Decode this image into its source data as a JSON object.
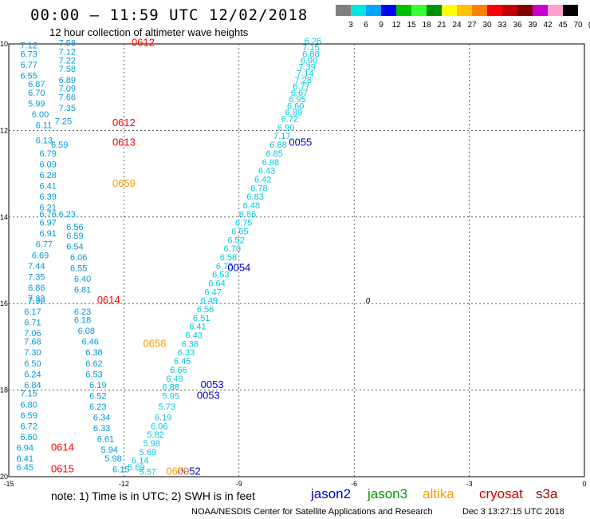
{
  "title": "00:00 – 11:59 UTC 12/02/2018",
  "subtitle": "12 hour collection of altimeter wave heights",
  "legend": {
    "colors": [
      "#808080",
      "#00e5e5",
      "#00a5ff",
      "#0000ff",
      "#00c000",
      "#33ff33",
      "#009000",
      "#ffff00",
      "#ffc000",
      "#ff8000",
      "#ff0000",
      "#c00000",
      "#800000",
      "#cc00cc",
      "#ffa0d0",
      "#000000"
    ],
    "labels": [
      "3",
      "6",
      "9",
      "12",
      "15",
      "18",
      "21",
      "24",
      "27",
      "30",
      "33",
      "36",
      "39",
      "42",
      "45",
      "70",
      "(ft)"
    ]
  },
  "axes": {
    "x_ticks": [
      "-15",
      "-12",
      "-9",
      "-6",
      "-3",
      "0"
    ],
    "y_ticks": [
      "-10",
      "-12",
      "-14",
      "-16",
      "-18",
      "-20"
    ]
  },
  "footer": {
    "note": "note: 1) Time is in UTC; 2) SWH is in feet",
    "credit": "NOAA/NESDIS Center for Satellite Applications and Research",
    "timestamp": "Dec 3 13:27:15 UTC 2018"
  },
  "satellites": [
    {
      "name": "jason2",
      "color": "#0000cc"
    },
    {
      "name": "jason3",
      "color": "#009900"
    },
    {
      "name": "altika",
      "color": "#ff9900"
    },
    {
      "name": "cryosat",
      "color": "#cc0000"
    },
    {
      "name": "s3a",
      "color": "#990000"
    }
  ],
  "map_data": {
    "lon_range": [
      -15,
      0
    ],
    "lat_range": [
      -20,
      -10
    ],
    "time_labels": [
      {
        "text": "0612",
        "color": "#ff0000",
        "lon": -11.8,
        "lat": -10.05
      },
      {
        "text": "0612",
        "color": "#ff0000",
        "lon": -12.3,
        "lat": -11.9
      },
      {
        "text": "0613",
        "color": "#ff0000",
        "lon": -12.3,
        "lat": -12.35
      },
      {
        "text": "0659",
        "color": "#ff9900",
        "lon": -12.3,
        "lat": -13.3
      },
      {
        "text": "0614",
        "color": "#ff0000",
        "lon": -12.7,
        "lat": -16.0
      },
      {
        "text": "0658",
        "color": "#ff9900",
        "lon": -11.5,
        "lat": -17.0
      },
      {
        "text": "0614",
        "color": "#ff0000",
        "lon": -13.9,
        "lat": -19.4
      },
      {
        "text": "0615",
        "color": "#ff0000",
        "lon": -13.9,
        "lat": -19.9
      },
      {
        "text": "0055",
        "color": "#0000cc",
        "lon": -7.7,
        "lat": -12.35
      },
      {
        "text": "0054",
        "color": "#0000cc",
        "lon": -9.3,
        "lat": -15.25
      },
      {
        "text": "0053",
        "color": "#0000cc",
        "lon": -10.0,
        "lat": -17.95
      },
      {
        "text": "0053",
        "color": "#0000cc",
        "lon": -10.1,
        "lat": -18.2
      },
      {
        "text": "0052",
        "color": "#0000cc",
        "lon": -10.6,
        "lat": -19.95
      },
      {
        "text": "0659",
        "color": "#ff9900",
        "lon": -10.9,
        "lat": -19.95
      }
    ],
    "tracks": [
      {
        "color": "#009ad6",
        "values": [
          {
            "lon": -14.7,
            "lat": -10.1,
            "v": "7.12"
          },
          {
            "lon": -13.7,
            "lat": -10.05,
            "v": "7.58"
          },
          {
            "lon": -13.7,
            "lat": -10.25,
            "v": "7.12"
          },
          {
            "lon": -14.7,
            "lat": -10.3,
            "v": "6.73"
          },
          {
            "lon": -13.7,
            "lat": -10.45,
            "v": "7.22"
          },
          {
            "lon": -14.7,
            "lat": -10.55,
            "v": "6.77"
          },
          {
            "lon": -13.7,
            "lat": -10.65,
            "v": "7.58"
          },
          {
            "lon": -14.7,
            "lat": -10.8,
            "v": "6.55"
          },
          {
            "lon": -13.7,
            "lat": -10.9,
            "v": "6.89"
          },
          {
            "lon": -14.5,
            "lat": -11.0,
            "v": "6.87"
          },
          {
            "lon": -13.7,
            "lat": -11.1,
            "v": "7.09"
          },
          {
            "lon": -14.5,
            "lat": -11.2,
            "v": "6.70"
          },
          {
            "lon": -13.7,
            "lat": -11.3,
            "v": "7.66"
          },
          {
            "lon": -14.5,
            "lat": -11.45,
            "v": "5.99"
          },
          {
            "lon": -13.7,
            "lat": -11.55,
            "v": "7.35"
          },
          {
            "lon": -14.4,
            "lat": -11.7,
            "v": "6.00"
          },
          {
            "lon": -13.8,
            "lat": -11.85,
            "v": "7.25"
          },
          {
            "lon": -14.3,
            "lat": -11.95,
            "v": "6.11"
          },
          {
            "lon": -14.3,
            "lat": -12.3,
            "v": "6.13"
          },
          {
            "lon": -13.9,
            "lat": -12.4,
            "v": "6.59"
          },
          {
            "lon": -14.2,
            "lat": -12.6,
            "v": "6.79"
          },
          {
            "lon": -14.2,
            "lat": -12.85,
            "v": "6.09"
          },
          {
            "lon": -14.2,
            "lat": -13.1,
            "v": "6.28"
          },
          {
            "lon": -14.2,
            "lat": -13.35,
            "v": "6.41"
          },
          {
            "lon": -14.2,
            "lat": -13.6,
            "v": "6.39"
          },
          {
            "lon": -14.2,
            "lat": -13.85,
            "v": "6.21"
          },
          {
            "lon": -14.2,
            "lat": -14.0,
            "v": "6.76"
          },
          {
            "lon": -13.7,
            "lat": -14.0,
            "v": "6.23"
          },
          {
            "lon": -14.2,
            "lat": -14.2,
            "v": "6.97"
          },
          {
            "lon": -13.5,
            "lat": -14.3,
            "v": "6.56"
          },
          {
            "lon": -14.2,
            "lat": -14.45,
            "v": "6.91"
          },
          {
            "lon": -13.5,
            "lat": -14.5,
            "v": "6.59"
          },
          {
            "lon": -14.3,
            "lat": -14.7,
            "v": "6.77"
          },
          {
            "lon": -13.5,
            "lat": -14.75,
            "v": "6.54"
          },
          {
            "lon": -14.4,
            "lat": -14.95,
            "v": "6.69"
          },
          {
            "lon": -13.4,
            "lat": -15.0,
            "v": "6.06"
          },
          {
            "lon": -14.5,
            "lat": -15.2,
            "v": "7.44"
          },
          {
            "lon": -13.4,
            "lat": -15.25,
            "v": "6.55"
          },
          {
            "lon": -14.5,
            "lat": -15.45,
            "v": "7.35"
          },
          {
            "lon": -13.3,
            "lat": -15.5,
            "v": "6.40"
          },
          {
            "lon": -14.5,
            "lat": -15.7,
            "v": "6.86"
          },
          {
            "lon": -13.3,
            "lat": -15.75,
            "v": "6.81"
          },
          {
            "lon": -14.5,
            "lat": -15.95,
            "v": "7.33"
          },
          {
            "lon": -14.5,
            "lat": -16.0,
            "v": "7.30"
          },
          {
            "lon": -14.6,
            "lat": -16.25,
            "v": "6.17"
          },
          {
            "lon": -13.3,
            "lat": -16.25,
            "v": "6.23"
          },
          {
            "lon": -14.6,
            "lat": -16.5,
            "v": "6.71"
          },
          {
            "lon": -13.3,
            "lat": -16.45,
            "v": "6.18"
          },
          {
            "lon": -14.6,
            "lat": -16.75,
            "v": "7.06"
          },
          {
            "lon": -13.2,
            "lat": -16.7,
            "v": "6.08"
          },
          {
            "lon": -14.6,
            "lat": -16.95,
            "v": "7.68"
          },
          {
            "lon": -13.1,
            "lat": -16.95,
            "v": "6.46"
          },
          {
            "lon": -14.6,
            "lat": -17.2,
            "v": "7.30"
          },
          {
            "lon": -13.0,
            "lat": -17.2,
            "v": "6.38"
          },
          {
            "lon": -14.6,
            "lat": -17.45,
            "v": "6.50"
          },
          {
            "lon": -13.0,
            "lat": -17.45,
            "v": "6.62"
          },
          {
            "lon": -14.6,
            "lat": -17.7,
            "v": "6.24"
          },
          {
            "lon": -13.0,
            "lat": -17.7,
            "v": "6.53"
          },
          {
            "lon": -14.6,
            "lat": -17.95,
            "v": "6.84"
          },
          {
            "lon": -12.9,
            "lat": -17.95,
            "v": "6.19"
          },
          {
            "lon": -14.7,
            "lat": -18.15,
            "v": "7.15"
          },
          {
            "lon": -12.9,
            "lat": -18.2,
            "v": "6.52"
          },
          {
            "lon": -14.7,
            "lat": -18.4,
            "v": "6.80"
          },
          {
            "lon": -12.9,
            "lat": -18.45,
            "v": "6.23"
          },
          {
            "lon": -14.7,
            "lat": -18.65,
            "v": "6.59"
          },
          {
            "lon": -12.8,
            "lat": -18.7,
            "v": "6.34"
          },
          {
            "lon": -14.7,
            "lat": -18.9,
            "v": "6.72"
          },
          {
            "lon": -12.8,
            "lat": -18.95,
            "v": "6.33"
          },
          {
            "lon": -14.7,
            "lat": -19.15,
            "v": "6.60"
          },
          {
            "lon": -12.7,
            "lat": -19.2,
            "v": "6.61"
          },
          {
            "lon": -14.8,
            "lat": -19.4,
            "v": "6.94"
          },
          {
            "lon": -12.6,
            "lat": -19.45,
            "v": "5.94"
          },
          {
            "lon": -14.8,
            "lat": -19.65,
            "v": "6.41"
          },
          {
            "lon": -12.5,
            "lat": -19.65,
            "v": "5.98"
          },
          {
            "lon": -14.8,
            "lat": -19.85,
            "v": "6.45"
          },
          {
            "lon": -12.3,
            "lat": -19.9,
            "v": "6.15"
          }
        ]
      },
      {
        "color": "#00c8e0",
        "values": [
          {
            "lon": -7.3,
            "lat": -10.0,
            "v": "6.26"
          },
          {
            "lon": -7.35,
            "lat": -10.15,
            "v": "7.15"
          },
          {
            "lon": -7.35,
            "lat": -10.3,
            "v": "6.88"
          },
          {
            "lon": -7.4,
            "lat": -10.45,
            "v": "6.90"
          },
          {
            "lon": -7.45,
            "lat": -10.6,
            "v": "7.39"
          },
          {
            "lon": -7.5,
            "lat": -10.75,
            "v": "7.14"
          },
          {
            "lon": -7.55,
            "lat": -10.9,
            "v": "7.28"
          },
          {
            "lon": -7.6,
            "lat": -11.05,
            "v": "6.77"
          },
          {
            "lon": -7.65,
            "lat": -11.2,
            "v": "6.67"
          },
          {
            "lon": -7.7,
            "lat": -11.35,
            "v": "6.95"
          },
          {
            "lon": -7.75,
            "lat": -11.5,
            "v": "6.60"
          },
          {
            "lon": -7.8,
            "lat": -11.65,
            "v": "6.89"
          },
          {
            "lon": -7.9,
            "lat": -11.8,
            "v": "6.72"
          },
          {
            "lon": -8.0,
            "lat": -12.0,
            "v": "6.90"
          },
          {
            "lon": -8.1,
            "lat": -12.2,
            "v": "7.17"
          },
          {
            "lon": -8.2,
            "lat": -12.4,
            "v": "6.88"
          },
          {
            "lon": -8.3,
            "lat": -12.6,
            "v": "6.85"
          },
          {
            "lon": -8.4,
            "lat": -12.8,
            "v": "6.98"
          },
          {
            "lon": -8.5,
            "lat": -13.0,
            "v": "6.43"
          },
          {
            "lon": -8.6,
            "lat": -13.2,
            "v": "6.42"
          },
          {
            "lon": -8.7,
            "lat": -13.4,
            "v": "6.78"
          },
          {
            "lon": -8.8,
            "lat": -13.6,
            "v": "6.83"
          },
          {
            "lon": -8.9,
            "lat": -13.8,
            "v": "6.48"
          },
          {
            "lon": -9.0,
            "lat": -14.0,
            "v": "6.86"
          },
          {
            "lon": -9.1,
            "lat": -14.2,
            "v": "6.75"
          },
          {
            "lon": -9.2,
            "lat": -14.4,
            "v": "6.65"
          },
          {
            "lon": -9.3,
            "lat": -14.6,
            "v": "6.52"
          },
          {
            "lon": -9.4,
            "lat": -14.8,
            "v": "6.70"
          },
          {
            "lon": -9.5,
            "lat": -15.0,
            "v": "6.58"
          },
          {
            "lon": -9.6,
            "lat": -15.2,
            "v": "6.75"
          },
          {
            "lon": -9.7,
            "lat": -15.4,
            "v": "6.53"
          },
          {
            "lon": -9.8,
            "lat": -15.6,
            "v": "6.64"
          },
          {
            "lon": -9.9,
            "lat": -15.8,
            "v": "6.47"
          },
          {
            "lon": -10.0,
            "lat": -16.0,
            "v": "6.49"
          },
          {
            "lon": -10.1,
            "lat": -16.2,
            "v": "6.56"
          },
          {
            "lon": -10.2,
            "lat": -16.4,
            "v": "6.51"
          },
          {
            "lon": -10.3,
            "lat": -16.6,
            "v": "6.41"
          },
          {
            "lon": -10.4,
            "lat": -16.8,
            "v": "6.43"
          },
          {
            "lon": -10.5,
            "lat": -17.0,
            "v": "6.38"
          },
          {
            "lon": -10.6,
            "lat": -17.2,
            "v": "6.33"
          },
          {
            "lon": -10.7,
            "lat": -17.4,
            "v": "6.45"
          },
          {
            "lon": -10.8,
            "lat": -17.6,
            "v": "6.66"
          },
          {
            "lon": -10.9,
            "lat": -17.8,
            "v": "6.49"
          },
          {
            "lon": -11.0,
            "lat": -18.0,
            "v": "6.88"
          },
          {
            "lon": -11.0,
            "lat": -18.2,
            "v": "5.95"
          },
          {
            "lon": -11.1,
            "lat": -18.45,
            "v": "5.73"
          },
          {
            "lon": -11.2,
            "lat": -18.7,
            "v": "6.19"
          },
          {
            "lon": -11.3,
            "lat": -18.9,
            "v": "6.06"
          },
          {
            "lon": -11.4,
            "lat": -19.1,
            "v": "5.82"
          },
          {
            "lon": -11.5,
            "lat": -19.3,
            "v": "5.98"
          },
          {
            "lon": -11.6,
            "lat": -19.5,
            "v": "5.69"
          },
          {
            "lon": -11.8,
            "lat": -19.7,
            "v": "6.14"
          },
          {
            "lon": -11.9,
            "lat": -19.85,
            "v": "5.69"
          },
          {
            "lon": -11.6,
            "lat": -19.95,
            "v": "5.57"
          }
        ]
      }
    ],
    "markers": [
      {
        "text": "0",
        "lon": -5.7,
        "lat": -16.0
      }
    ]
  }
}
